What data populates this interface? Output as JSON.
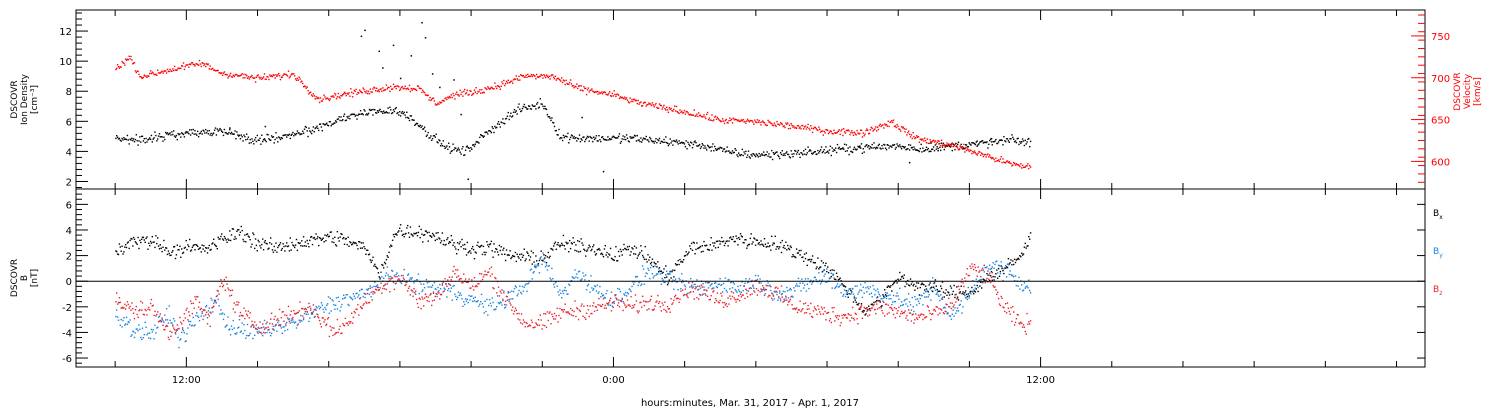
{
  "chart_data": [
    {
      "type": "scatter",
      "panel": "ion-density-velocity",
      "ylabel_lines": [
        "DSCOVR",
        "Ion Density",
        "[cm⁻³]"
      ],
      "yticks": [
        2,
        4,
        6,
        8,
        10,
        12
      ],
      "ylim": [
        1.5,
        13.4
      ],
      "y2label_lines": [
        "DSCOVR",
        "Velocity",
        "[km/s]"
      ],
      "y2ticks": [
        600,
        650,
        700,
        750
      ],
      "y2lim": [
        567,
        781
      ],
      "series": [
        {
          "key": "density",
          "color": "#000000",
          "axis": "left",
          "noise": 0.25,
          "knots": [
            [
              -2,
              5.0
            ],
            [
              -1.5,
              4.8
            ],
            [
              -0.8,
              5.0
            ],
            [
              0,
              5.3
            ],
            [
              1,
              5.4
            ],
            [
              1.8,
              4.8
            ],
            [
              2.8,
              5.0
            ],
            [
              3.7,
              5.6
            ],
            [
              4.3,
              6.2
            ],
            [
              5.0,
              6.6
            ],
            [
              5.8,
              6.8
            ],
            [
              6.3,
              6.3
            ],
            [
              6.8,
              5.2
            ],
            [
              7.3,
              4.3
            ],
            [
              7.8,
              4.0
            ],
            [
              8.6,
              5.6
            ],
            [
              9.3,
              6.8
            ],
            [
              10.0,
              7.2
            ],
            [
              10.5,
              5.0
            ],
            [
              11.5,
              4.9
            ],
            [
              12.5,
              4.9
            ],
            [
              13.5,
              4.7
            ],
            [
              14.6,
              4.4
            ],
            [
              15.2,
              4.0
            ],
            [
              16.0,
              3.8
            ],
            [
              17.0,
              3.9
            ],
            [
              18.0,
              4.1
            ],
            [
              19.0,
              4.3
            ],
            [
              20.0,
              4.4
            ],
            [
              20.7,
              4.2
            ],
            [
              21.5,
              4.4
            ],
            [
              22.5,
              4.6
            ],
            [
              23.2,
              4.8
            ],
            [
              23.7,
              4.6
            ]
          ]
        },
        {
          "key": "velocity",
          "color": "#ff0000",
          "axis": "right",
          "noise": 3.5,
          "knots": [
            [
              -2,
              712
            ],
            [
              -1.6,
              725
            ],
            [
              -1.3,
              702
            ],
            [
              -0.5,
              710
            ],
            [
              0.4,
              718
            ],
            [
              1.0,
              706
            ],
            [
              2.0,
              700
            ],
            [
              3.0,
              705
            ],
            [
              3.7,
              675
            ],
            [
              4.3,
              680
            ],
            [
              5.0,
              685
            ],
            [
              5.8,
              690
            ],
            [
              6.5,
              688
            ],
            [
              7.0,
              670
            ],
            [
              7.5,
              680
            ],
            [
              8.2,
              685
            ],
            [
              8.8,
              692
            ],
            [
              9.5,
              703
            ],
            [
              10.3,
              702
            ],
            [
              11.0,
              688
            ],
            [
              12.0,
              680
            ],
            [
              12.5,
              673
            ],
            [
              13.0,
              668
            ],
            [
              14.0,
              660
            ],
            [
              15.0,
              650
            ],
            [
              16.0,
              648
            ],
            [
              17.0,
              643
            ],
            [
              18.0,
              637
            ],
            [
              19.0,
              635
            ],
            [
              19.8,
              648
            ],
            [
              20.5,
              628
            ],
            [
              21.5,
              620
            ],
            [
              22.5,
              607
            ],
            [
              23.2,
              597
            ],
            [
              23.7,
              594
            ]
          ]
        }
      ],
      "spikes": [
        [
          1.2,
          5.6
        ],
        [
          2.2,
          5.7
        ],
        [
          4.9,
          11.7
        ],
        [
          5.0,
          12.1
        ],
        [
          5.4,
          10.7
        ],
        [
          5.5,
          9.6
        ],
        [
          5.8,
          11.1
        ],
        [
          6.0,
          8.9
        ],
        [
          6.3,
          10.4
        ],
        [
          6.6,
          12.6
        ],
        [
          6.7,
          11.6
        ],
        [
          6.9,
          9.2
        ],
        [
          7.1,
          8.3
        ],
        [
          7.5,
          8.8
        ],
        [
          7.7,
          6.5
        ],
        [
          7.9,
          2.2
        ],
        [
          11.1,
          6.3
        ],
        [
          11.7,
          2.7
        ],
        [
          18.9,
          4.4
        ],
        [
          20.3,
          3.3
        ],
        [
          20.9,
          4.6
        ],
        [
          21.1,
          4.1
        ],
        [
          22.2,
          4.4
        ],
        [
          22.6,
          4.9
        ]
      ]
    },
    {
      "type": "scatter",
      "panel": "magnetic-field",
      "ylabel_lines": [
        "DSCOVR",
        "B",
        "[nT]"
      ],
      "yticks": [
        -6,
        -4,
        -2,
        0,
        2,
        4,
        6
      ],
      "ylim": [
        -6.7,
        7.2
      ],
      "zero_line": true,
      "series": [
        {
          "key": "bx",
          "label": "B",
          "sub": "x",
          "color": "#000000",
          "noise": 0.5,
          "knots": [
            [
              -2,
              2.4
            ],
            [
              -1.5,
              3.1
            ],
            [
              -1.0,
              3.3
            ],
            [
              -0.5,
              2.4
            ],
            [
              0,
              2.7
            ],
            [
              0.5,
              2.5
            ],
            [
              1.0,
              3.3
            ],
            [
              1.5,
              3.9
            ],
            [
              2.0,
              3.0
            ],
            [
              2.5,
              2.6
            ],
            [
              3.0,
              3.0
            ],
            [
              3.5,
              3.2
            ],
            [
              4.0,
              3.5
            ],
            [
              4.5,
              3.2
            ],
            [
              5.0,
              2.6
            ],
            [
              5.4,
              0.6
            ],
            [
              5.9,
              4.0
            ],
            [
              6.5,
              3.9
            ],
            [
              7.0,
              3.6
            ],
            [
              7.5,
              2.9
            ],
            [
              8.0,
              2.6
            ],
            [
              8.5,
              2.7
            ],
            [
              9.0,
              2.1
            ],
            [
              9.5,
              1.9
            ],
            [
              10.0,
              1.8
            ],
            [
              10.5,
              3.0
            ],
            [
              11.0,
              2.7
            ],
            [
              11.5,
              2.6
            ],
            [
              12.0,
              2.1
            ],
            [
              12.5,
              2.6
            ],
            [
              13.0,
              1.8
            ],
            [
              13.5,
              0.3
            ],
            [
              14.2,
              2.7
            ],
            [
              14.8,
              2.8
            ],
            [
              15.3,
              3.4
            ],
            [
              15.8,
              3.2
            ],
            [
              16.5,
              3.0
            ],
            [
              17.0,
              2.4
            ],
            [
              17.5,
              1.8
            ],
            [
              18.0,
              1.0
            ],
            [
              18.5,
              -0.4
            ],
            [
              19.0,
              -2.2
            ],
            [
              19.5,
              -1.5
            ],
            [
              20.0,
              0.4
            ],
            [
              20.5,
              -0.3
            ],
            [
              21.0,
              -0.5
            ],
            [
              21.5,
              -0.9
            ],
            [
              22.0,
              -0.8
            ],
            [
              22.5,
              0.3
            ],
            [
              23.0,
              1.0
            ],
            [
              23.5,
              2.2
            ],
            [
              23.7,
              3.6
            ]
          ]
        },
        {
          "key": "by",
          "label": "B",
          "sub": "y",
          "color": "#1a84e0",
          "noise": 0.6,
          "knots": [
            [
              -2,
              -2.2
            ],
            [
              -1.5,
              -3.8
            ],
            [
              -1.0,
              -4.0
            ],
            [
              -0.5,
              -2.5
            ],
            [
              -0.2,
              -4.5
            ],
            [
              0.3,
              -2.8
            ],
            [
              0.8,
              -1.5
            ],
            [
              1.2,
              -3.5
            ],
            [
              1.8,
              -4.0
            ],
            [
              2.5,
              -3.6
            ],
            [
              3.0,
              -3.2
            ],
            [
              3.5,
              -2.5
            ],
            [
              4.0,
              -1.8
            ],
            [
              4.5,
              -1.3
            ],
            [
              5.0,
              -1.0
            ],
            [
              5.5,
              0.2
            ],
            [
              6.0,
              0.5
            ],
            [
              6.5,
              -0.3
            ],
            [
              7.0,
              -0.5
            ],
            [
              7.5,
              -0.8
            ],
            [
              8.0,
              -1.4
            ],
            [
              8.5,
              -2.0
            ],
            [
              9.0,
              -1.3
            ],
            [
              9.5,
              -0.3
            ],
            [
              10.0,
              1.8
            ],
            [
              10.5,
              -1.1
            ],
            [
              11.0,
              0.8
            ],
            [
              11.5,
              -0.7
            ],
            [
              12.0,
              -1.4
            ],
            [
              12.5,
              -0.4
            ],
            [
              13.0,
              0.9
            ],
            [
              13.5,
              0.2
            ],
            [
              14.0,
              -0.3
            ],
            [
              14.5,
              -0.5
            ],
            [
              15.0,
              0.0
            ],
            [
              15.5,
              -0.5
            ],
            [
              16.0,
              0.1
            ],
            [
              16.5,
              -0.8
            ],
            [
              17.0,
              -0.8
            ],
            [
              17.5,
              0.0
            ],
            [
              18.0,
              0.4
            ],
            [
              18.5,
              -0.8
            ],
            [
              19.0,
              -0.6
            ],
            [
              19.5,
              -0.9
            ],
            [
              20.0,
              -1.4
            ],
            [
              20.5,
              -1.8
            ],
            [
              21.0,
              -0.4
            ],
            [
              21.5,
              -2.8
            ],
            [
              22.0,
              -0.9
            ],
            [
              22.5,
              1.2
            ],
            [
              23.0,
              1.0
            ],
            [
              23.5,
              -0.2
            ],
            [
              23.7,
              -0.4
            ]
          ]
        },
        {
          "key": "bz",
          "label": "B",
          "sub": "z",
          "color": "#e8242b",
          "noise": 0.6,
          "knots": [
            [
              -2,
              -1.5
            ],
            [
              -1.5,
              -2.3
            ],
            [
              -1.0,
              -2.0
            ],
            [
              -0.5,
              -4.0
            ],
            [
              0,
              -2.5
            ],
            [
              0.3,
              -1.5
            ],
            [
              0.6,
              -3.2
            ],
            [
              1.0,
              0.3
            ],
            [
              1.5,
              -2.5
            ],
            [
              2.0,
              -3.5
            ],
            [
              2.5,
              -3.0
            ],
            [
              3.0,
              -2.5
            ],
            [
              3.5,
              -2.0
            ],
            [
              4.0,
              -3.6
            ],
            [
              4.3,
              -3.8
            ],
            [
              5.0,
              -1.5
            ],
            [
              5.5,
              -0.2
            ],
            [
              6.0,
              0.4
            ],
            [
              6.5,
              -1.5
            ],
            [
              7.0,
              -1.2
            ],
            [
              7.5,
              0.8
            ],
            [
              8.0,
              -0.4
            ],
            [
              8.5,
              0.8
            ],
            [
              9.0,
              -1.5
            ],
            [
              9.5,
              -3.2
            ],
            [
              10.0,
              -3.3
            ],
            [
              10.5,
              -2.4
            ],
            [
              11.0,
              -2.2
            ],
            [
              11.5,
              -2.0
            ],
            [
              12.0,
              -1.6
            ],
            [
              12.5,
              -1.9
            ],
            [
              13.0,
              -1.6
            ],
            [
              13.5,
              -1.7
            ],
            [
              14.0,
              -0.6
            ],
            [
              14.5,
              -0.7
            ],
            [
              15.0,
              -1.5
            ],
            [
              15.5,
              -1.0
            ],
            [
              16.0,
              -0.3
            ],
            [
              16.5,
              -0.8
            ],
            [
              17.0,
              -1.8
            ],
            [
              17.5,
              -2.2
            ],
            [
              18.0,
              -2.5
            ],
            [
              18.5,
              -2.7
            ],
            [
              19.0,
              -2.3
            ],
            [
              19.5,
              -2.0
            ],
            [
              20.0,
              -2.4
            ],
            [
              20.5,
              -2.8
            ],
            [
              21.0,
              -2.5
            ],
            [
              21.5,
              -1.8
            ],
            [
              22.0,
              1.0
            ],
            [
              22.5,
              0.5
            ],
            [
              23.0,
              -2.2
            ],
            [
              23.5,
              -3.5
            ],
            [
              23.7,
              -3.0
            ]
          ]
        }
      ]
    }
  ],
  "xaxis": {
    "ticks": [
      {
        "label": "12:00",
        "h": 0
      },
      {
        "label": "0:00",
        "h": 12
      },
      {
        "label": "12:00",
        "h": 24
      }
    ],
    "minor_every_h": 2,
    "xlim_h": [
      -3.1,
      34.8
    ],
    "data_end_h": 23.7,
    "title": "hours:minutes, Mar. 31, 2017 - Apr.  1, 2017"
  }
}
